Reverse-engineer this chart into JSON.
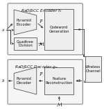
{
  "fig_width": 1.5,
  "fig_height": 1.57,
  "dpi": 100,
  "bg_color": "#ffffff",
  "encoder_title": "RaDJSCC Encoder $f_e$",
  "decoder_title": "RaDJSCC Decoder $g_e$",
  "wireless_label": "Wireless\nChannel",
  "box_fc": "#eeeeee",
  "box_ec": "#555555",
  "outer_ec": "#888888",
  "line_color": "#333333",
  "text_color": "#111111",
  "label_fontsize": 3.8,
  "title_fontsize": 4.2,
  "arrow_color": "#333333"
}
